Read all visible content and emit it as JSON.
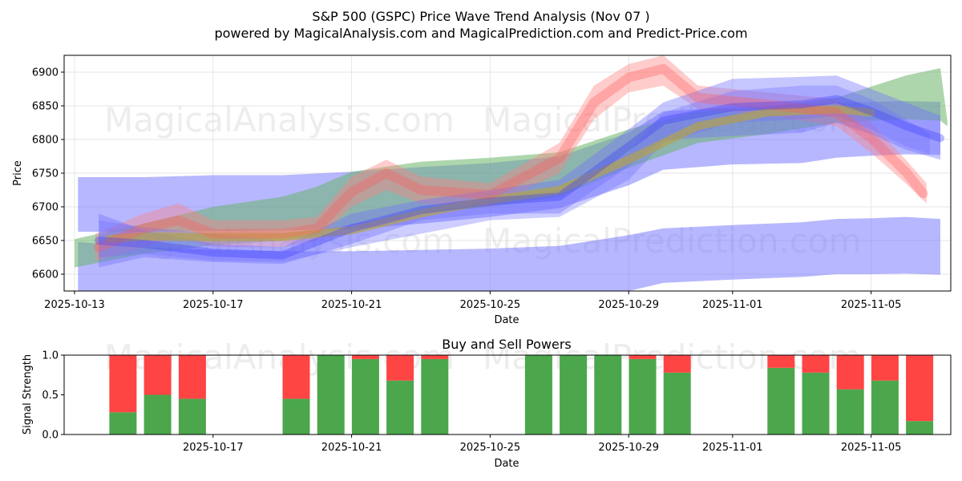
{
  "figure": {
    "title_line1": "S&P 500 (GSPC) Price Wave Trend Analysis (Nov 07 )",
    "title_line2": "powered by MagicalAnalysis.com and MagicalPrediction.com and Predict-Price.com",
    "watermarks": [
      "MagicalAnalysis.com",
      "MagicalPrediction.com"
    ]
  },
  "colors": {
    "red": "#ff7f7f",
    "green": "#6ab56a",
    "blue": "#7070ff",
    "buy": "#4ca64c",
    "sell": "#ff4444",
    "grid": "#e6e6e6"
  },
  "chart_data": [
    {
      "type": "area",
      "title": "",
      "xlabel": "Date",
      "ylabel": "Price",
      "xlim_days": [
        -0.3,
        25.3
      ],
      "ylim": [
        6575,
        6925
      ],
      "x_ticks": [
        {
          "day": 0,
          "label": "2025-10-13"
        },
        {
          "day": 4,
          "label": "2025-10-17"
        },
        {
          "day": 8,
          "label": "2025-10-21"
        },
        {
          "day": 12,
          "label": "2025-10-25"
        },
        {
          "day": 16,
          "label": "2025-10-29"
        },
        {
          "day": 19,
          "label": "2025-11-01"
        },
        {
          "day": 23,
          "label": "2025-11-05"
        }
      ],
      "y_ticks": [
        6600,
        6650,
        6700,
        6750,
        6800,
        6850,
        6900
      ],
      "grid": true,
      "bands": [
        {
          "name": "lower wide band",
          "color": "blue",
          "alpha": 0.5,
          "x": [
            0.1,
            2,
            4,
            6,
            8,
            10,
            12,
            14,
            16,
            17,
            19,
            21,
            22,
            23,
            24,
            25
          ],
          "upper": [
            6648,
            6640,
            6636,
            6634,
            6634,
            6636,
            6638,
            6642,
            6658,
            6668,
            6673,
            6677,
            6682,
            6683,
            6685,
            6682
          ],
          "lower": [
            6572,
            6572,
            6572,
            6572,
            6572,
            6572,
            6572,
            6572,
            6572,
            6587,
            6592,
            6596,
            6600,
            6600,
            6601,
            6599
          ]
        },
        {
          "name": "upper wide band",
          "color": "blue",
          "alpha": 0.5,
          "x": [
            0.1,
            2,
            4,
            6,
            8,
            10,
            12,
            14,
            16,
            17,
            19,
            21,
            22,
            23,
            24,
            25
          ],
          "upper": [
            6744,
            6744,
            6747,
            6747,
            6752,
            6759,
            6765,
            6775,
            6810,
            6842,
            6848,
            6852,
            6855,
            6856,
            6857,
            6856
          ],
          "lower": [
            6663,
            6663,
            6664,
            6665,
            6667,
            6675,
            6685,
            6698,
            6732,
            6755,
            6763,
            6765,
            6773,
            6776,
            6778,
            6777
          ]
        },
        {
          "name": "green trend band",
          "color": "green",
          "alpha": 0.55,
          "x": [
            0,
            2,
            4,
            6,
            7,
            8,
            10,
            12,
            14,
            16,
            18,
            20,
            22,
            24,
            25,
            25.2
          ],
          "upper": [
            6652,
            6675,
            6700,
            6715,
            6730,
            6752,
            6767,
            6773,
            6781,
            6815,
            6842,
            6848,
            6862,
            6895,
            6906,
            6828
          ],
          "lower": [
            6610,
            6630,
            6643,
            6650,
            6658,
            6672,
            6690,
            6700,
            6715,
            6758,
            6795,
            6808,
            6825,
            6830,
            6828,
            6820
          ]
        },
        {
          "name": "red wave band",
          "color": "red",
          "alpha": 0.4,
          "x": [
            0.6,
            2,
            3,
            4,
            6,
            7,
            8,
            9,
            10,
            12,
            14,
            15,
            16,
            17,
            18,
            20,
            22,
            23,
            24,
            24.6
          ],
          "upper": [
            6660,
            6690,
            6705,
            6680,
            6680,
            6685,
            6745,
            6770,
            6745,
            6735,
            6795,
            6880,
            6912,
            6925,
            6880,
            6870,
            6860,
            6825,
            6770,
            6735
          ],
          "lower": [
            6620,
            6640,
            6655,
            6640,
            6640,
            6650,
            6700,
            6725,
            6705,
            6700,
            6750,
            6830,
            6870,
            6880,
            6845,
            6835,
            6820,
            6780,
            6735,
            6705
          ]
        },
        {
          "name": "blue wave band 1",
          "color": "blue",
          "alpha": 0.4,
          "x": [
            0.7,
            2,
            4,
            6,
            8,
            10,
            12,
            14,
            16,
            17,
            19,
            21,
            22,
            23,
            24,
            25
          ],
          "upper": [
            6690,
            6665,
            6645,
            6640,
            6690,
            6710,
            6725,
            6740,
            6815,
            6855,
            6890,
            6893,
            6895,
            6875,
            6855,
            6835
          ],
          "lower": [
            6610,
            6625,
            6618,
            6615,
            6645,
            6680,
            6690,
            6690,
            6760,
            6800,
            6805,
            6810,
            6825,
            6808,
            6785,
            6770
          ]
        },
        {
          "name": "blue wave band 2",
          "color": "blue",
          "alpha": 0.35,
          "x": [
            0.7,
            2,
            4,
            6,
            8,
            10,
            12,
            14,
            16,
            17,
            19,
            21,
            22,
            23,
            24,
            24.7
          ],
          "upper": [
            6680,
            6670,
            6660,
            6650,
            6675,
            6690,
            6710,
            6725,
            6780,
            6840,
            6872,
            6880,
            6880,
            6860,
            6830,
            6808
          ],
          "lower": [
            6625,
            6630,
            6620,
            6618,
            6640,
            6660,
            6680,
            6685,
            6740,
            6795,
            6825,
            6830,
            6835,
            6815,
            6790,
            6778
          ]
        }
      ],
      "lines": [
        {
          "name": "olive mean line",
          "color": "#b3a24a",
          "width": 10,
          "alpha": 0.7,
          "x": [
            1,
            2,
            4,
            6,
            7,
            8,
            10,
            12,
            14,
            16,
            18,
            20,
            22,
            23
          ],
          "y": [
            6652,
            6656,
            6655,
            6655,
            6660,
            6665,
            6690,
            6710,
            6725,
            6770,
            6820,
            6840,
            6845,
            6840
          ]
        },
        {
          "name": "red wave line",
          "color": "#ff5c5c",
          "width": 12,
          "alpha": 0.35,
          "x": [
            0.7,
            2,
            3,
            4,
            6,
            7,
            8,
            9,
            10,
            12,
            14,
            15,
            16,
            17,
            18,
            20,
            22,
            23,
            24,
            24.5
          ],
          "y": [
            6640,
            6668,
            6680,
            6660,
            6660,
            6668,
            6722,
            6750,
            6725,
            6718,
            6772,
            6855,
            6892,
            6905,
            6862,
            6852,
            6840,
            6802,
            6752,
            6720
          ]
        },
        {
          "name": "blue wave line",
          "color": "#3b3bff",
          "width": 10,
          "alpha": 0.35,
          "x": [
            0.7,
            2,
            4,
            6,
            8,
            10,
            12,
            14,
            16,
            17,
            19,
            21,
            22,
            23,
            24,
            25
          ],
          "y": [
            6650,
            6645,
            6632,
            6628,
            6668,
            6695,
            6708,
            6715,
            6790,
            6828,
            6848,
            6852,
            6860,
            6842,
            6820,
            6802
          ]
        }
      ]
    },
    {
      "type": "bar",
      "title": "Buy and Sell Powers",
      "xlabel": "Date",
      "ylabel": "Signal Strength",
      "ylim": [
        0,
        1.0
      ],
      "y_ticks": [
        {
          "value": 0.0,
          "label": "0.0"
        },
        {
          "value": 0.5,
          "label": "0.5"
        },
        {
          "value": 1.0,
          "label": "1.0"
        }
      ],
      "x_ticks": [
        {
          "day": 4,
          "label": "2025-10-17"
        },
        {
          "day": 8,
          "label": "2025-10-21"
        },
        {
          "day": 12,
          "label": "2025-10-25"
        },
        {
          "day": 16,
          "label": "2025-10-29"
        },
        {
          "day": 19,
          "label": "2025-11-01"
        },
        {
          "day": 23,
          "label": "2025-11-05"
        }
      ],
      "bar_days": [
        1.4,
        2.4,
        3.4,
        6.4,
        7.4,
        8.4,
        9.4,
        10.4,
        13.4,
        14.4,
        15.4,
        16.4,
        17.4,
        20.4,
        21.4,
        22.4,
        23.4,
        24.4
      ],
      "series": [
        {
          "name": "Buy",
          "color": "buy",
          "values": [
            0.28,
            0.5,
            0.45,
            0.45,
            1.0,
            0.95,
            0.68,
            0.95,
            1.0,
            1.0,
            1.0,
            0.95,
            0.78,
            0.84,
            0.78,
            0.57,
            0.68,
            0.17
          ]
        },
        {
          "name": "Sell",
          "color": "sell",
          "values": [
            0.72,
            0.5,
            0.55,
            0.55,
            0.0,
            0.05,
            0.32,
            0.05,
            0.0,
            0.0,
            0.0,
            0.05,
            0.22,
            0.16,
            0.22,
            0.43,
            0.32,
            0.83
          ]
        }
      ]
    }
  ]
}
